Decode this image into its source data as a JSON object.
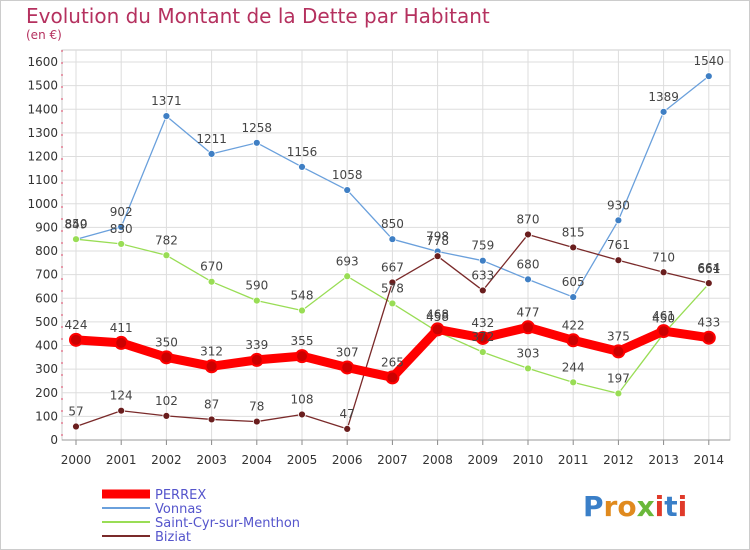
{
  "chart_data": {
    "type": "line",
    "title": "Evolution du Montant de la Dette par Habitant",
    "subtitle": "(en €)",
    "categories": [
      "2000",
      "2001",
      "2002",
      "2003",
      "2004",
      "2005",
      "2006",
      "2007",
      "2008",
      "2009",
      "2010",
      "2011",
      "2012",
      "2013",
      "2014"
    ],
    "ylim": [
      0,
      1600
    ],
    "yticks": [
      0,
      100,
      200,
      300,
      400,
      500,
      600,
      700,
      800,
      900,
      1000,
      1100,
      1200,
      1300,
      1400,
      1500,
      1600
    ],
    "grid": true,
    "legend_position": "bottom-left",
    "series": [
      {
        "name": "PERREX",
        "color": "#ff0000",
        "values": [
          424,
          411,
          350,
          312,
          339,
          355,
          307,
          265,
          468,
          432,
          477,
          422,
          375,
          461,
          433
        ]
      },
      {
        "name": "Vonnas",
        "color": "#6aa0dc",
        "values": [
          849,
          902,
          1371,
          1211,
          1258,
          1156,
          1058,
          850,
          798,
          759,
          680,
          605,
          930,
          1389,
          1540
        ]
      },
      {
        "name": "Saint-Cyr-sur-Menthon",
        "color": "#99dd55",
        "values": [
          850,
          830,
          782,
          670,
          590,
          548,
          693,
          578,
          458,
          372,
          303,
          244,
          197,
          450,
          661
        ]
      },
      {
        "name": "Biziat",
        "color": "#7a2a2a",
        "values": [
          57,
          124,
          102,
          87,
          78,
          108,
          47,
          667,
          778,
          633,
          870,
          815,
          761,
          710,
          664
        ]
      }
    ],
    "data_labels": {
      "PERREX": [
        "424",
        "411",
        "350",
        "312",
        "339",
        "355",
        "307",
        "265",
        "468",
        "432",
        "477",
        "422",
        "375",
        "461",
        "433"
      ],
      "Vonnas": [
        "849",
        "902",
        "1371",
        "1211",
        "1258",
        "1156",
        "1058",
        "850",
        "798",
        "759",
        "680",
        "605",
        "930",
        "1389",
        "1540"
      ],
      "Saint-Cyr-sur-Menthon": [
        "850",
        "830",
        "782",
        "670",
        "590",
        "548",
        "693",
        "578",
        "458",
        "372",
        "303",
        "244",
        "197",
        "450",
        "661"
      ],
      "Biziat": [
        "57",
        "124",
        "102",
        "87",
        "78",
        "108",
        "47",
        "667",
        "778",
        "633",
        "870",
        "815",
        "761",
        "710",
        "664"
      ]
    }
  },
  "logo": {
    "text": "Proxiti",
    "colors": [
      "#3a7fc8",
      "#e08a1e",
      "#e08a1e",
      "#6ab83a",
      "#e03a2a",
      "#3a7fc8",
      "#e03a2a"
    ]
  },
  "colors": {
    "title": "#b5315f",
    "axis": "#333333",
    "grid": "#dddddd",
    "legend_text": "#5555cc",
    "background": "#ffffff"
  }
}
